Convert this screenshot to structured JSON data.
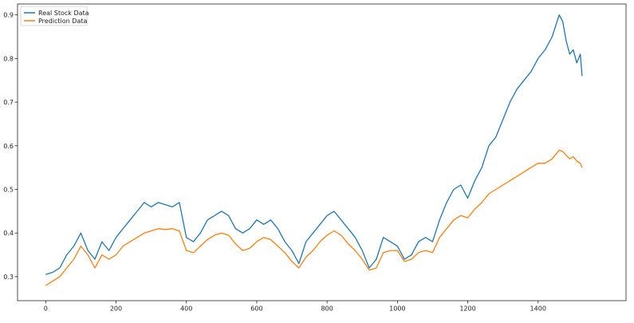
{
  "chart_data": {
    "type": "line",
    "title": "",
    "xlabel": "",
    "ylabel": "",
    "xlim": [
      -80,
      1650
    ],
    "ylim": [
      0.245,
      0.925
    ],
    "xticks": [
      0,
      200,
      400,
      600,
      800,
      1000,
      1200,
      1400
    ],
    "xtick_labels": [
      "0",
      "200",
      "400",
      "600",
      "800",
      "1000",
      "1200",
      "1400"
    ],
    "yticks": [
      0.3,
      0.4,
      0.5,
      0.6,
      0.7,
      0.8,
      0.9
    ],
    "ytick_labels": [
      "0.3",
      "0.4",
      "0.5",
      "0.6",
      "0.7",
      "0.8",
      "0.9"
    ],
    "grid": false,
    "legend_position": "top-left",
    "colors": {
      "Real Stock Data": "#1f77b4",
      "Prediction Data": "#ff7f0e"
    },
    "series": [
      {
        "name": "Real Stock Data",
        "x": [
          0,
          20,
          40,
          60,
          80,
          100,
          120,
          140,
          160,
          180,
          200,
          220,
          240,
          260,
          280,
          300,
          320,
          340,
          360,
          380,
          400,
          420,
          440,
          460,
          480,
          500,
          520,
          540,
          560,
          580,
          600,
          620,
          640,
          660,
          680,
          700,
          720,
          740,
          760,
          780,
          800,
          820,
          840,
          860,
          880,
          900,
          920,
          940,
          960,
          980,
          1000,
          1020,
          1040,
          1060,
          1080,
          1100,
          1120,
          1140,
          1160,
          1180,
          1200,
          1220,
          1240,
          1260,
          1280,
          1300,
          1320,
          1340,
          1360,
          1380,
          1400,
          1420,
          1440,
          1460,
          1470,
          1480,
          1490,
          1500,
          1510,
          1520,
          1525
        ],
        "y": [
          0.305,
          0.31,
          0.32,
          0.35,
          0.37,
          0.4,
          0.36,
          0.34,
          0.38,
          0.36,
          0.39,
          0.41,
          0.43,
          0.45,
          0.47,
          0.46,
          0.47,
          0.465,
          0.46,
          0.47,
          0.39,
          0.38,
          0.4,
          0.43,
          0.44,
          0.45,
          0.44,
          0.41,
          0.4,
          0.41,
          0.43,
          0.42,
          0.43,
          0.41,
          0.38,
          0.36,
          0.33,
          0.38,
          0.4,
          0.42,
          0.44,
          0.45,
          0.43,
          0.41,
          0.39,
          0.36,
          0.32,
          0.34,
          0.39,
          0.38,
          0.37,
          0.34,
          0.35,
          0.38,
          0.39,
          0.38,
          0.43,
          0.47,
          0.5,
          0.51,
          0.48,
          0.52,
          0.55,
          0.6,
          0.62,
          0.66,
          0.7,
          0.73,
          0.75,
          0.77,
          0.8,
          0.82,
          0.85,
          0.9,
          0.885,
          0.84,
          0.81,
          0.82,
          0.79,
          0.81,
          0.76
        ]
      },
      {
        "name": "Prediction Data",
        "x": [
          0,
          20,
          40,
          60,
          80,
          100,
          120,
          140,
          160,
          180,
          200,
          220,
          240,
          260,
          280,
          300,
          320,
          340,
          360,
          380,
          400,
          420,
          440,
          460,
          480,
          500,
          520,
          540,
          560,
          580,
          600,
          620,
          640,
          660,
          680,
          700,
          720,
          740,
          760,
          780,
          800,
          820,
          840,
          860,
          880,
          900,
          920,
          940,
          960,
          980,
          1000,
          1020,
          1040,
          1060,
          1080,
          1100,
          1120,
          1140,
          1160,
          1180,
          1200,
          1220,
          1240,
          1260,
          1280,
          1300,
          1320,
          1340,
          1360,
          1380,
          1400,
          1420,
          1440,
          1460,
          1470,
          1480,
          1490,
          1500,
          1510,
          1520,
          1525
        ],
        "y": [
          0.28,
          0.29,
          0.3,
          0.32,
          0.34,
          0.37,
          0.35,
          0.32,
          0.35,
          0.34,
          0.35,
          0.37,
          0.38,
          0.39,
          0.4,
          0.405,
          0.41,
          0.408,
          0.41,
          0.405,
          0.36,
          0.355,
          0.37,
          0.385,
          0.395,
          0.4,
          0.395,
          0.375,
          0.36,
          0.365,
          0.38,
          0.39,
          0.385,
          0.37,
          0.355,
          0.335,
          0.32,
          0.345,
          0.36,
          0.38,
          0.395,
          0.405,
          0.395,
          0.375,
          0.36,
          0.34,
          0.315,
          0.32,
          0.355,
          0.36,
          0.36,
          0.335,
          0.34,
          0.355,
          0.36,
          0.355,
          0.39,
          0.41,
          0.43,
          0.44,
          0.435,
          0.455,
          0.47,
          0.49,
          0.5,
          0.51,
          0.52,
          0.53,
          0.54,
          0.55,
          0.56,
          0.56,
          0.57,
          0.59,
          0.587,
          0.578,
          0.57,
          0.575,
          0.565,
          0.56,
          0.55
        ]
      }
    ]
  }
}
